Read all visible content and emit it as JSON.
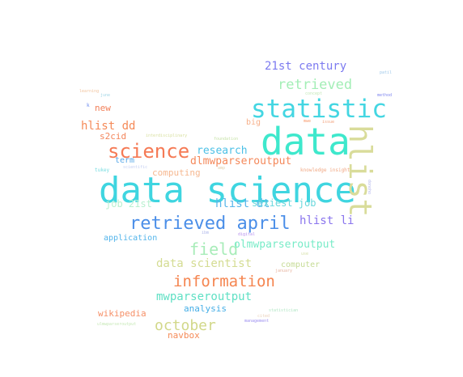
{
  "words": [
    {
      "text": "data science",
      "color": "#3fd5e0"
    },
    {
      "text": "data",
      "color": "#3ee8cc"
    },
    {
      "text": "statistic",
      "color": "#44d6e2"
    },
    {
      "text": "hlist",
      "color": "#d9dc9a"
    },
    {
      "text": "retrieved april",
      "color": "#4a8ee8"
    },
    {
      "text": "science",
      "color": "#f57a55"
    },
    {
      "text": "information",
      "color": "#f58550"
    },
    {
      "text": "field",
      "color": "#a8ecb9"
    },
    {
      "text": "october",
      "color": "#d2d88a"
    },
    {
      "text": "retrieved",
      "color": "#a3eeb6"
    },
    {
      "text": "21st century",
      "color": "#7d7bf0"
    },
    {
      "text": "research",
      "color": "#4cc0e6"
    },
    {
      "text": "dlmwparseroutput",
      "color": "#f4885a"
    },
    {
      "text": "hlist dd",
      "color": "#f58a58"
    },
    {
      "text": "hlist dt",
      "color": "#58b6ea"
    },
    {
      "text": "hlist li",
      "color": "#8a75ee"
    },
    {
      "text": "data scientist",
      "color": "#d4dc92"
    },
    {
      "text": "mwparseroutput",
      "color": "#5fe0c4"
    },
    {
      "text": "olmwparseroutput",
      "color": "#77ebc7"
    },
    {
      "text": "job 21st",
      "color": "#b9f0d0"
    },
    {
      "text": "sexiest job",
      "color": "#6bd8dc"
    },
    {
      "text": "computing",
      "color": "#f6b890"
    },
    {
      "text": "analysis",
      "color": "#45aee6"
    },
    {
      "text": "wikipedia",
      "color": "#f69068"
    },
    {
      "text": "navbox",
      "color": "#f58b58"
    },
    {
      "text": "new",
      "color": "#f2805a"
    },
    {
      "text": "s2cid",
      "color": "#f3865c"
    },
    {
      "text": "big",
      "color": "#f7b08a"
    },
    {
      "text": "term",
      "color": "#58a8e8"
    },
    {
      "text": "application",
      "color": "#52b4ea"
    },
    {
      "text": "computer",
      "color": "#c6dc96"
    },
    {
      "text": "knowledge insight",
      "color": "#f1a884"
    },
    {
      "text": "interdisciplinary",
      "color": "#d8e0a0"
    },
    {
      "text": "management",
      "color": "#9c8ef0"
    },
    {
      "text": "foundation",
      "color": "#c7e2a8"
    },
    {
      "text": "learning",
      "color": "#f2c49e"
    },
    {
      "text": "method",
      "color": "#7f86ef"
    },
    {
      "text": "patil",
      "color": "#9ec8ea"
    },
    {
      "text": "june",
      "color": "#a2d6e6"
    },
    {
      "text": "concept",
      "color": "#c4e8b8"
    },
    {
      "text": "issue",
      "color": "#f2a27c"
    },
    {
      "text": "mwe",
      "color": "#f79a6c"
    },
    {
      "text": "tukey",
      "color": "#76dce0"
    },
    {
      "text": "digital",
      "color": "#b690ee"
    },
    {
      "text": "january",
      "color": "#e7b5a0"
    },
    {
      "text": "amp",
      "color": "#e0d0b0"
    },
    {
      "text": "statistician",
      "color": "#b0e6c4"
    },
    {
      "text": "ulmwparseroutput",
      "color": "#c6e8b6"
    },
    {
      "text": "scientific",
      "color": "#c4cff2"
    },
    {
      "text": "donoho",
      "color": "#b2b6ec"
    },
    {
      "text": "cited",
      "color": "#ead0b8"
    },
    {
      "text": "k",
      "color": "#6a8af0"
    },
    {
      "text": "use",
      "color": "#d6e0a8"
    },
    {
      "text": "ibm",
      "color": "#b0b8ea"
    }
  ]
}
